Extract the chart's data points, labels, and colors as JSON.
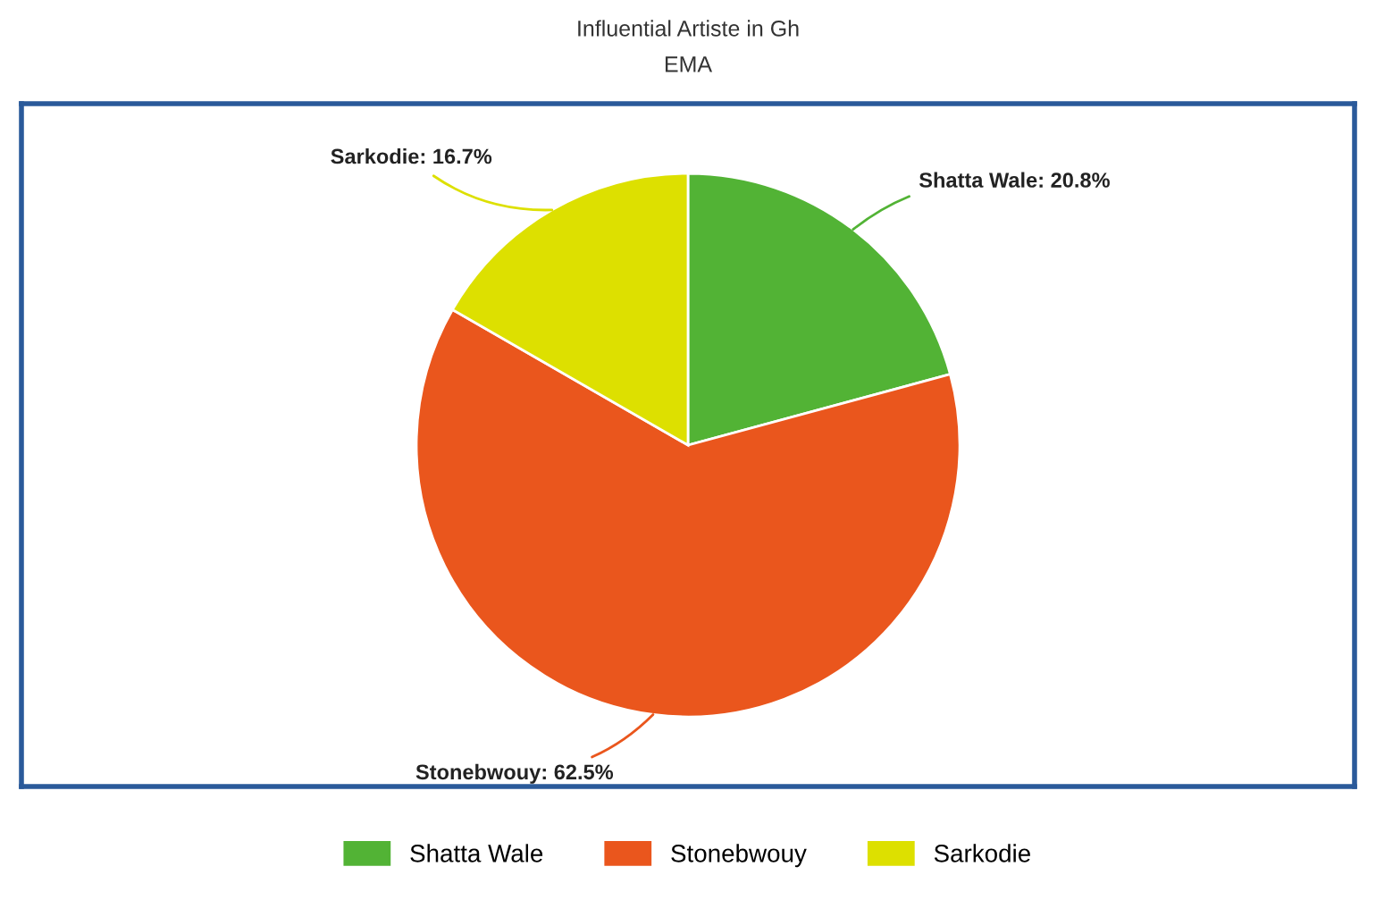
{
  "chart_data": {
    "type": "pie",
    "title": "Influential Artiste in Gh",
    "subtitle": "EMA",
    "categories": [
      "Shatta Wale",
      "Stonebwouy",
      "Sarkodie"
    ],
    "values": [
      20.8,
      62.5,
      16.7
    ],
    "colors": [
      "#52b335",
      "#ea561d",
      "#dde000"
    ],
    "value_labels": [
      "Shatta Wale: 20.8%",
      "Stonebwouy: 62.5%",
      "Sarkodie: 16.7%"
    ],
    "legend": "bottom"
  }
}
